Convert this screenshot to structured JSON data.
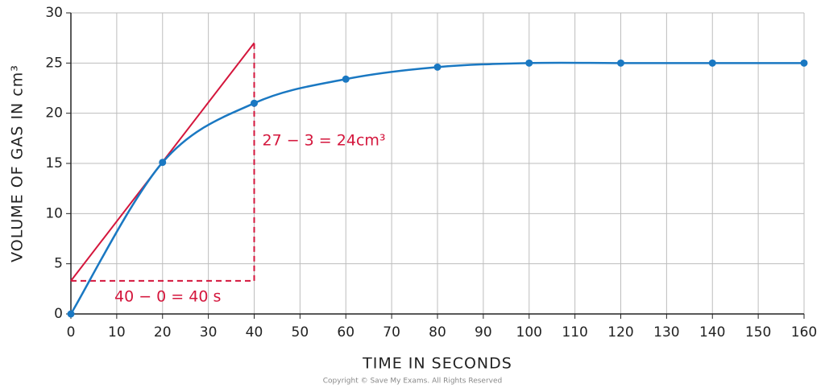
{
  "chart_data": {
    "type": "line",
    "x_label": "TIME IN SECONDS",
    "y_label": "VOLUME OF GAS IN cm³",
    "x": [
      0,
      20,
      40,
      60,
      80,
      100,
      120,
      140,
      160
    ],
    "series": [
      {
        "name": "Volume of gas",
        "color": "#1a78c2",
        "values": [
          0,
          15.1,
          21,
          23.4,
          24.6,
          25,
          25,
          25,
          25
        ]
      }
    ],
    "xlim": [
      0,
      160
    ],
    "xticks": [
      0,
      10,
      20,
      30,
      40,
      50,
      60,
      70,
      80,
      90,
      100,
      110,
      120,
      130,
      140,
      150,
      160
    ],
    "ylim": [
      0,
      30
    ],
    "yticks": [
      0,
      5,
      10,
      15,
      20,
      25,
      30
    ],
    "grid": true,
    "tangent": {
      "color": "#d4163c",
      "x": [
        0,
        40
      ],
      "y": [
        3.3,
        27
      ]
    },
    "annotations": [
      "27 − 3 = 24cm³",
      "40 − 0 = 40 s"
    ],
    "copyright": "Copyright © Save My Exams. All Rights Reserved"
  }
}
